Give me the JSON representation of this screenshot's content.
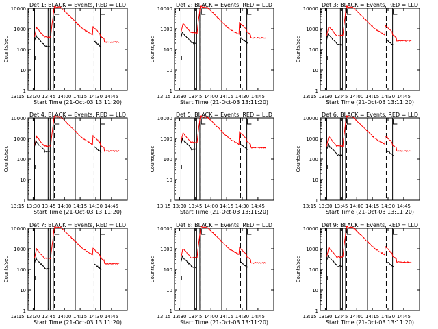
{
  "chart_data": [
    {
      "type": "line",
      "title": "Det 1: BLACK = Events, RED = LLD",
      "xlabel": "Start Time (21-Oct-03 13:11:20)",
      "ylabel": "Counts/sec",
      "x_ticks": [
        "13:15",
        "13:30",
        "13:45",
        "14:00",
        "14:15",
        "14:30",
        "14:45"
      ],
      "y_ticks": [
        "1",
        "10",
        "100",
        "1000",
        "10000"
      ],
      "yscale": "log",
      "ylim": [
        1,
        10000
      ],
      "xlim_minutes": [
        13.8,
        108.8
      ],
      "series": [
        {
          "name": "Events",
          "color": "#000000",
          "key": "ev"
        },
        {
          "name": "LLD",
          "color": "#ff0000",
          "key": "lld"
        }
      ],
      "solid_lines_minutes": [
        20,
        33,
        35,
        38,
        59,
        83
      ],
      "dashed_lines_minutes": [
        39,
        77
      ],
      "ev_level": 1.0,
      "lld_level": 1.0
    },
    {
      "type": "line",
      "title": "Det 2: BLACK = Events, RED = LLD",
      "xlabel": "Start Time (21-Oct-03 13:11:20)",
      "ylabel": "Counts/sec",
      "x_ticks": [
        "13:15",
        "13:30",
        "13:45",
        "14:00",
        "14:15",
        "14:30",
        "14:45"
      ],
      "y_ticks": [
        "1",
        "10",
        "100",
        "1000",
        "10000"
      ],
      "yscale": "log",
      "ylim": [
        1,
        10000
      ],
      "xlim_minutes": [
        13.8,
        108.8
      ],
      "series": [
        {
          "name": "Events",
          "color": "#000000",
          "key": "ev"
        },
        {
          "name": "LLD",
          "color": "#ff0000",
          "key": "lld"
        }
      ],
      "solid_lines_minutes": [
        20,
        33,
        35,
        38,
        59,
        83
      ],
      "dashed_lines_minutes": [
        39,
        77
      ],
      "ev_level": 1.4,
      "lld_level": 1.6
    },
    {
      "type": "line",
      "title": "Det 3: BLACK = Events, RED = LLD",
      "xlabel": "Start Time (21-Oct-03 13:11:20)",
      "ylabel": "Counts/sec",
      "x_ticks": [
        "13:15",
        "13:30",
        "13:45",
        "14:00",
        "14:15",
        "14:30",
        "14:45"
      ],
      "y_ticks": [
        "1",
        "10",
        "100",
        "1000",
        "10000"
      ],
      "yscale": "log",
      "ylim": [
        1,
        10000
      ],
      "xlim_minutes": [
        13.8,
        108.8
      ],
      "series": [
        {
          "name": "Events",
          "color": "#000000",
          "key": "ev"
        },
        {
          "name": "LLD",
          "color": "#ff0000",
          "key": "lld"
        }
      ],
      "solid_lines_minutes": [
        20,
        33,
        35,
        38,
        59,
        83
      ],
      "dashed_lines_minutes": [
        39,
        77
      ],
      "ev_level": 1.2,
      "lld_level": 1.2
    },
    {
      "type": "line",
      "title": "Det 4: BLACK = Events, RED = LLD",
      "xlabel": "Start Time (21-Oct-03 13:11:20)",
      "ylabel": "Counts/sec",
      "x_ticks": [
        "13:15",
        "13:30",
        "13:45",
        "14:00",
        "14:15",
        "14:30",
        "14:45"
      ],
      "y_ticks": [
        "1",
        "10",
        "100",
        "1000",
        "10000"
      ],
      "yscale": "log",
      "ylim": [
        1,
        10000
      ],
      "xlim_minutes": [
        13.8,
        108.8
      ],
      "series": [
        {
          "name": "Events",
          "color": "#000000",
          "key": "ev"
        },
        {
          "name": "LLD",
          "color": "#ff0000",
          "key": "lld"
        }
      ],
      "solid_lines_minutes": [
        20,
        33,
        35,
        38,
        59,
        83
      ],
      "dashed_lines_minutes": [
        39,
        77
      ],
      "ev_level": 1.5,
      "lld_level": 1.1
    },
    {
      "type": "line",
      "title": "Det 5: BLACK = Events, RED = LLD",
      "xlabel": "Start Time (21-Oct-03 13:11:20)",
      "ylabel": "Counts/sec",
      "x_ticks": [
        "13:15",
        "13:30",
        "13:45",
        "14:00",
        "14:15",
        "14:30",
        "14:45"
      ],
      "y_ticks": [
        "1",
        "10",
        "100",
        "1000",
        "10000"
      ],
      "yscale": "log",
      "ylim": [
        1,
        10000
      ],
      "xlim_minutes": [
        13.8,
        108.8
      ],
      "series": [
        {
          "name": "Events",
          "color": "#000000",
          "key": "ev"
        },
        {
          "name": "LLD",
          "color": "#ff0000",
          "key": "lld"
        }
      ],
      "solid_lines_minutes": [
        20,
        33,
        35,
        38,
        59,
        83
      ],
      "dashed_lines_minutes": [
        39,
        77
      ],
      "ev_level": 1.8,
      "lld_level": 1.6
    },
    {
      "type": "line",
      "title": "Det 6: BLACK = Events, RED = LLD",
      "xlabel": "Start Time (21-Oct-03 13:11:20)",
      "ylabel": "Counts/sec",
      "x_ticks": [
        "13:15",
        "13:30",
        "13:45",
        "14:00",
        "14:15",
        "14:30",
        "14:45"
      ],
      "y_ticks": [
        "1",
        "10",
        "100",
        "1000",
        "10000"
      ],
      "yscale": "log",
      "ylim": [
        1,
        10000
      ],
      "xlim_minutes": [
        13.8,
        108.8
      ],
      "series": [
        {
          "name": "Events",
          "color": "#000000",
          "key": "ev"
        },
        {
          "name": "LLD",
          "color": "#ff0000",
          "key": "lld"
        }
      ],
      "solid_lines_minutes": [
        20,
        33,
        35,
        38,
        59,
        83
      ],
      "dashed_lines_minutes": [
        39,
        77
      ],
      "ev_level": 1.1,
      "lld_level": 1.1
    },
    {
      "type": "line",
      "title": "Det 7: BLACK = Events, RED = LLD",
      "xlabel": "Start Time (21-Oct-03 13:11:20)",
      "ylabel": "Counts/sec",
      "x_ticks": [
        "13:15",
        "13:30",
        "13:45",
        "14:00",
        "14:15",
        "14:30",
        "14:45"
      ],
      "y_ticks": [
        "1",
        "10",
        "100",
        "1000",
        "10000"
      ],
      "yscale": "log",
      "ylim": [
        1,
        10000
      ],
      "xlim_minutes": [
        13.8,
        108.8
      ],
      "series": [
        {
          "name": "Events",
          "color": "#000000",
          "key": "ev"
        },
        {
          "name": "LLD",
          "color": "#ff0000",
          "key": "lld"
        }
      ],
      "solid_lines_minutes": [
        20,
        33,
        35,
        38,
        59,
        83
      ],
      "dashed_lines_minutes": [
        39,
        77
      ],
      "ev_level": 0.7,
      "lld_level": 0.8
    },
    {
      "type": "line",
      "title": "Det 8: BLACK = Events, RED = LLD",
      "xlabel": "Start Time (21-Oct-03 13:11:20)",
      "ylabel": "Counts/sec",
      "x_ticks": [
        "13:15",
        "13:30",
        "13:45",
        "14:00",
        "14:15",
        "14:30",
        "14:45"
      ],
      "y_ticks": [
        "1",
        "10",
        "100",
        "1000",
        "10000"
      ],
      "yscale": "log",
      "ylim": [
        1,
        10000
      ],
      "xlim_minutes": [
        13.8,
        108.8
      ],
      "series": [
        {
          "name": "Events",
          "color": "#000000",
          "key": "ev"
        },
        {
          "name": "LLD",
          "color": "#ff0000",
          "key": "lld"
        }
      ],
      "solid_lines_minutes": [
        20,
        33,
        35,
        38,
        59,
        83
      ],
      "dashed_lines_minutes": [
        39,
        77
      ],
      "ev_level": 0.9,
      "lld_level": 0.9
    },
    {
      "type": "line",
      "title": "Det 9: BLACK = Events, RED = LLD",
      "xlabel": "Start Time (21-Oct-03 13:11:20)",
      "ylabel": "Counts/sec",
      "x_ticks": [
        "13:15",
        "13:30",
        "13:45",
        "14:00",
        "14:15",
        "14:30",
        "14:45"
      ],
      "y_ticks": [
        "1",
        "10",
        "100",
        "1000",
        "10000"
      ],
      "yscale": "log",
      "ylim": [
        1,
        10000
      ],
      "xlim_minutes": [
        13.8,
        108.8
      ],
      "series": [
        {
          "name": "Events",
          "color": "#000000",
          "key": "ev"
        },
        {
          "name": "LLD",
          "color": "#ff0000",
          "key": "lld"
        }
      ],
      "solid_lines_minutes": [
        20,
        33,
        35,
        38,
        59,
        83
      ],
      "dashed_lines_minutes": [
        39,
        77
      ],
      "ev_level": 1.0,
      "lld_level": 1.0
    }
  ]
}
